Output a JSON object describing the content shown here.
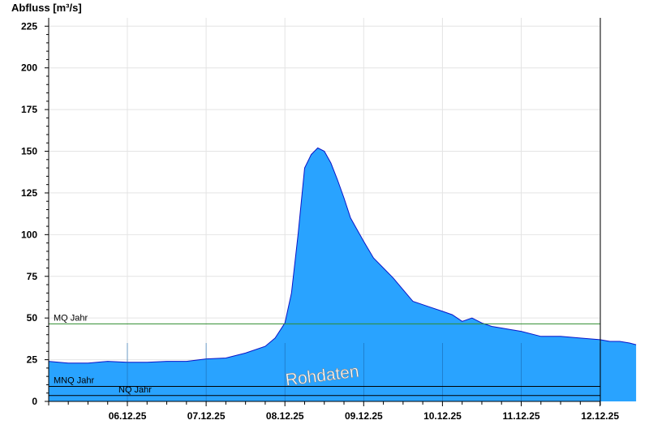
{
  "chart_data": {
    "type": "area",
    "title": "",
    "ylabel": "Abfluss [m³/s]",
    "xlabel": "",
    "ylim": [
      0,
      230
    ],
    "yticks": [
      0,
      25,
      50,
      75,
      100,
      125,
      150,
      175,
      200,
      225
    ],
    "x_range": [
      "05.12.25 00:00",
      "12.12.25 12:00"
    ],
    "x_tick_labels": [
      "06.12.25",
      "07.12.25",
      "08.12.25",
      "09.12.25",
      "10.12.25",
      "11.12.25",
      "12.12.25"
    ],
    "grid": true,
    "colors": {
      "fill": "#29a3ff",
      "line": "#0a14c8",
      "mq": "#2e8b2e",
      "threshold": "#000000"
    },
    "reference_lines": [
      {
        "label": "MQ Jahr",
        "value": 46.5,
        "color": "#2e8b2e"
      },
      {
        "label": "MNQ Jahr",
        "value": 9,
        "color": "#000000"
      },
      {
        "label": "NQ Jahr",
        "value": 3.5,
        "color": "#000000"
      }
    ],
    "annotation": "Rohdaten",
    "series": [
      {
        "x": [
          "05.12.25 00:00",
          "05.12.25 06:00",
          "05.12.25 12:00",
          "05.12.25 18:00",
          "06.12.25 00:00",
          "06.12.25 06:00",
          "06.12.25 12:00",
          "06.12.25 18:00",
          "07.12.25 00:00",
          "07.12.25 06:00",
          "07.12.25 12:00",
          "07.12.25 18:00",
          "07.12.25 21:00",
          "08.12.25 00:00",
          "08.12.25 02:00",
          "08.12.25 04:00",
          "08.12.25 06:00",
          "08.12.25 08:00",
          "08.12.25 10:00",
          "08.12.25 12:00",
          "08.12.25 14:00",
          "08.12.25 16:00",
          "08.12.25 18:00",
          "08.12.25 20:00",
          "08.12.25 22:00",
          "09.12.25 00:00",
          "09.12.25 03:00",
          "09.12.25 06:00",
          "09.12.25 09:00",
          "09.12.25 12:00",
          "09.12.25 15:00",
          "09.12.25 18:00",
          "09.12.25 21:00",
          "10.12.25 00:00",
          "10.12.25 03:00",
          "10.12.25 06:00",
          "10.12.25 09:00",
          "10.12.25 12:00",
          "10.12.25 15:00",
          "10.12.25 18:00",
          "10.12.25 21:00",
          "11.12.25 00:00",
          "11.12.25 06:00",
          "11.12.25 12:00",
          "11.12.25 18:00",
          "12.12.25 00:00",
          "12.12.25 03:00",
          "12.12.25 06:00",
          "12.12.25 09:00",
          "12.12.25 11:00"
        ],
        "values": [
          24,
          23,
          23,
          24,
          23.5,
          23.5,
          24,
          24,
          25.5,
          26,
          29,
          33,
          38,
          47,
          65,
          100,
          140,
          148,
          152,
          150,
          143,
          133,
          122,
          110,
          103,
          96,
          86,
          80,
          74,
          67,
          60,
          58,
          56,
          54,
          52,
          48,
          50,
          47,
          45,
          44,
          43,
          42,
          39,
          39,
          38,
          37,
          36,
          36,
          35,
          34
        ]
      }
    ]
  }
}
